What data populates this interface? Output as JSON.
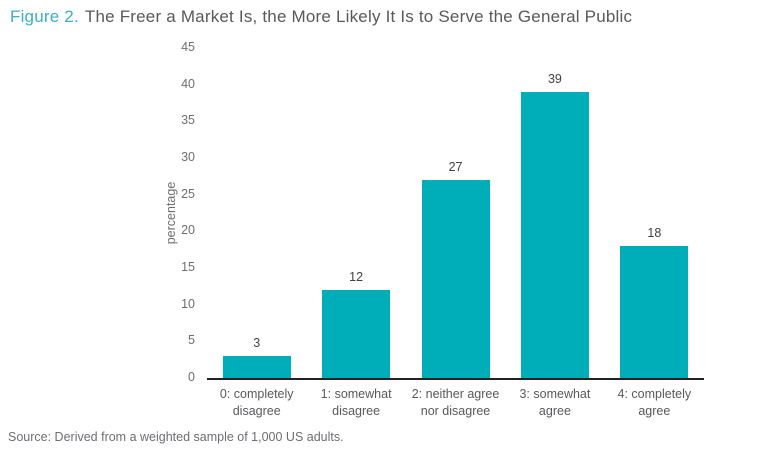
{
  "title": {
    "figure_label": "Figure 2.",
    "text": "The Freer a Market Is, the More Likely It Is to Serve the General Public"
  },
  "source": "Source: Derived from a weighted sample of 1,000 US adults.",
  "colors": {
    "bar": "#00aeb9",
    "figure_label": "#3bafc9",
    "title_text": "#58595b",
    "axis_text": "#6d6e71",
    "value_label": "#414042",
    "axis_line": "#222222"
  },
  "chart_data": {
    "type": "bar",
    "title": "The Freer a Market Is, the More Likely It Is to Serve the General Public",
    "categories": [
      "0: completely disagree",
      "1: somewhat disagree",
      "2: neither agree nor disagree",
      "3: somewhat agree",
      "4: completely agree"
    ],
    "values": [
      3,
      12,
      27,
      39,
      18
    ],
    "xlabel": "",
    "ylabel": "percentage",
    "ylim": [
      0,
      45
    ],
    "ytick_step": 5,
    "grid": false,
    "legend": false,
    "value_labels": true
  }
}
